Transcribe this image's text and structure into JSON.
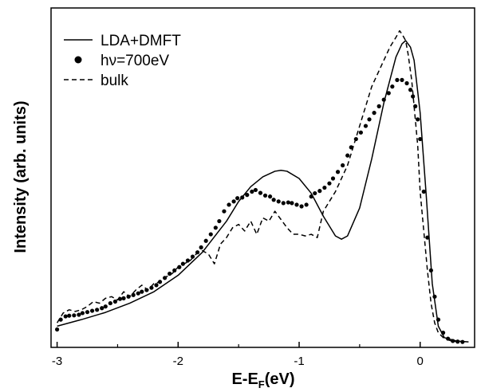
{
  "chart_data": {
    "type": "line",
    "xlabel": "E-E",
    "xlabel_sub": "F",
    "xlabel_suffix": "(eV)",
    "ylabel": "Intensity (arb. units)",
    "xlim": [
      -3.05,
      0.45
    ],
    "ylim": [
      0,
      1.0
    ],
    "x_ticks": [
      -3,
      -2,
      -1,
      0
    ],
    "x_tick_labels": [
      "-3",
      "-2",
      "-1",
      "0"
    ],
    "y_ticks_labeled": false,
    "legend_position": "top-left",
    "series": [
      {
        "name": "LDA+DMFT",
        "style": "solid",
        "x": [
          -3.0,
          -2.8,
          -2.6,
          -2.4,
          -2.2,
          -2.0,
          -1.8,
          -1.6,
          -1.5,
          -1.4,
          -1.3,
          -1.2,
          -1.15,
          -1.1,
          -1.0,
          -0.9,
          -0.8,
          -0.7,
          -0.65,
          -0.6,
          -0.5,
          -0.4,
          -0.3,
          -0.2,
          -0.15,
          -0.12,
          -0.08,
          -0.05,
          0.0,
          0.05,
          0.1,
          0.15,
          0.2,
          0.3,
          0.4
        ],
        "y": [
          0.05,
          0.07,
          0.092,
          0.12,
          0.155,
          0.205,
          0.275,
          0.37,
          0.43,
          0.475,
          0.505,
          0.522,
          0.525,
          0.522,
          0.5,
          0.455,
          0.385,
          0.325,
          0.315,
          0.325,
          0.41,
          0.56,
          0.73,
          0.87,
          0.91,
          0.92,
          0.9,
          0.86,
          0.7,
          0.45,
          0.18,
          0.05,
          0.015,
          0.005,
          0.002
        ]
      },
      {
        "name": "hν=700eV",
        "style": "markers",
        "x": [
          -3.0,
          -2.97,
          -2.93,
          -2.9,
          -2.86,
          -2.82,
          -2.79,
          -2.75,
          -2.71,
          -2.67,
          -2.63,
          -2.6,
          -2.56,
          -2.52,
          -2.48,
          -2.45,
          -2.41,
          -2.37,
          -2.33,
          -2.3,
          -2.26,
          -2.22,
          -2.18,
          -2.15,
          -2.11,
          -2.07,
          -2.03,
          -1.99,
          -1.96,
          -1.92,
          -1.88,
          -1.84,
          -1.81,
          -1.77,
          -1.73,
          -1.69,
          -1.66,
          -1.62,
          -1.58,
          -1.54,
          -1.51,
          -1.47,
          -1.43,
          -1.39,
          -1.36,
          -1.32,
          -1.28,
          -1.24,
          -1.21,
          -1.17,
          -1.13,
          -1.09,
          -1.06,
          -1.02,
          -0.98,
          -0.94,
          -0.9,
          -0.87,
          -0.83,
          -0.79,
          -0.75,
          -0.72,
          -0.68,
          -0.64,
          -0.6,
          -0.57,
          -0.53,
          -0.49,
          -0.45,
          -0.42,
          -0.38,
          -0.34,
          -0.3,
          -0.26,
          -0.23,
          -0.19,
          -0.15,
          -0.11,
          -0.08,
          -0.06,
          -0.04,
          -0.02,
          0.0,
          0.03,
          0.06,
          0.09,
          0.12,
          0.15,
          0.19,
          0.23,
          0.27,
          0.31,
          0.35
        ],
        "y": [
          0.04,
          0.07,
          0.08,
          0.082,
          0.083,
          0.085,
          0.09,
          0.093,
          0.097,
          0.1,
          0.105,
          0.11,
          0.12,
          0.125,
          0.133,
          0.135,
          0.14,
          0.145,
          0.15,
          0.155,
          0.16,
          0.167,
          0.175,
          0.185,
          0.197,
          0.21,
          0.22,
          0.23,
          0.24,
          0.25,
          0.262,
          0.275,
          0.29,
          0.31,
          0.33,
          0.35,
          0.37,
          0.4,
          0.42,
          0.43,
          0.44,
          0.442,
          0.45,
          0.46,
          0.465,
          0.456,
          0.448,
          0.445,
          0.435,
          0.43,
          0.425,
          0.427,
          0.425,
          0.42,
          0.415,
          0.42,
          0.445,
          0.455,
          0.462,
          0.472,
          0.485,
          0.5,
          0.52,
          0.54,
          0.57,
          0.595,
          0.62,
          0.64,
          0.66,
          0.68,
          0.7,
          0.72,
          0.74,
          0.76,
          0.78,
          0.8,
          0.8,
          0.79,
          0.77,
          0.75,
          0.72,
          0.68,
          0.62,
          0.46,
          0.32,
          0.22,
          0.14,
          0.07,
          0.03,
          0.012,
          0.005,
          0.003,
          0.002
        ]
      },
      {
        "name": "bulk",
        "style": "dashed",
        "x": [
          -3.0,
          -2.95,
          -2.9,
          -2.85,
          -2.8,
          -2.75,
          -2.7,
          -2.65,
          -2.6,
          -2.55,
          -2.5,
          -2.45,
          -2.4,
          -2.35,
          -2.3,
          -2.25,
          -2.2,
          -2.15,
          -2.1,
          -2.05,
          -2.0,
          -1.95,
          -1.9,
          -1.85,
          -1.8,
          -1.75,
          -1.7,
          -1.65,
          -1.6,
          -1.55,
          -1.5,
          -1.45,
          -1.4,
          -1.35,
          -1.3,
          -1.25,
          -1.2,
          -1.15,
          -1.1,
          -1.05,
          -1.0,
          -0.95,
          -0.9,
          -0.85,
          -0.8,
          -0.75,
          -0.7,
          -0.65,
          -0.6,
          -0.55,
          -0.5,
          -0.45,
          -0.4,
          -0.35,
          -0.3,
          -0.25,
          -0.2,
          -0.17,
          -0.15,
          -0.12,
          -0.1,
          -0.07,
          -0.05,
          -0.02,
          0.0,
          0.03,
          0.06,
          0.09,
          0.12,
          0.15,
          0.2,
          0.25,
          0.3,
          0.35
        ],
        "y": [
          0.06,
          0.09,
          0.1,
          0.095,
          0.1,
          0.11,
          0.125,
          0.12,
          0.135,
          0.14,
          0.13,
          0.155,
          0.14,
          0.16,
          0.175,
          0.16,
          0.18,
          0.185,
          0.2,
          0.21,
          0.23,
          0.24,
          0.25,
          0.27,
          0.28,
          0.27,
          0.24,
          0.3,
          0.32,
          0.35,
          0.36,
          0.34,
          0.37,
          0.33,
          0.38,
          0.37,
          0.4,
          0.375,
          0.35,
          0.33,
          0.33,
          0.325,
          0.33,
          0.32,
          0.4,
          0.43,
          0.46,
          0.5,
          0.54,
          0.6,
          0.66,
          0.72,
          0.78,
          0.82,
          0.86,
          0.9,
          0.93,
          0.95,
          0.94,
          0.92,
          0.88,
          0.8,
          0.72,
          0.6,
          0.46,
          0.34,
          0.22,
          0.12,
          0.06,
          0.03,
          0.012,
          0.006,
          0.003,
          0.002
        ]
      }
    ]
  }
}
